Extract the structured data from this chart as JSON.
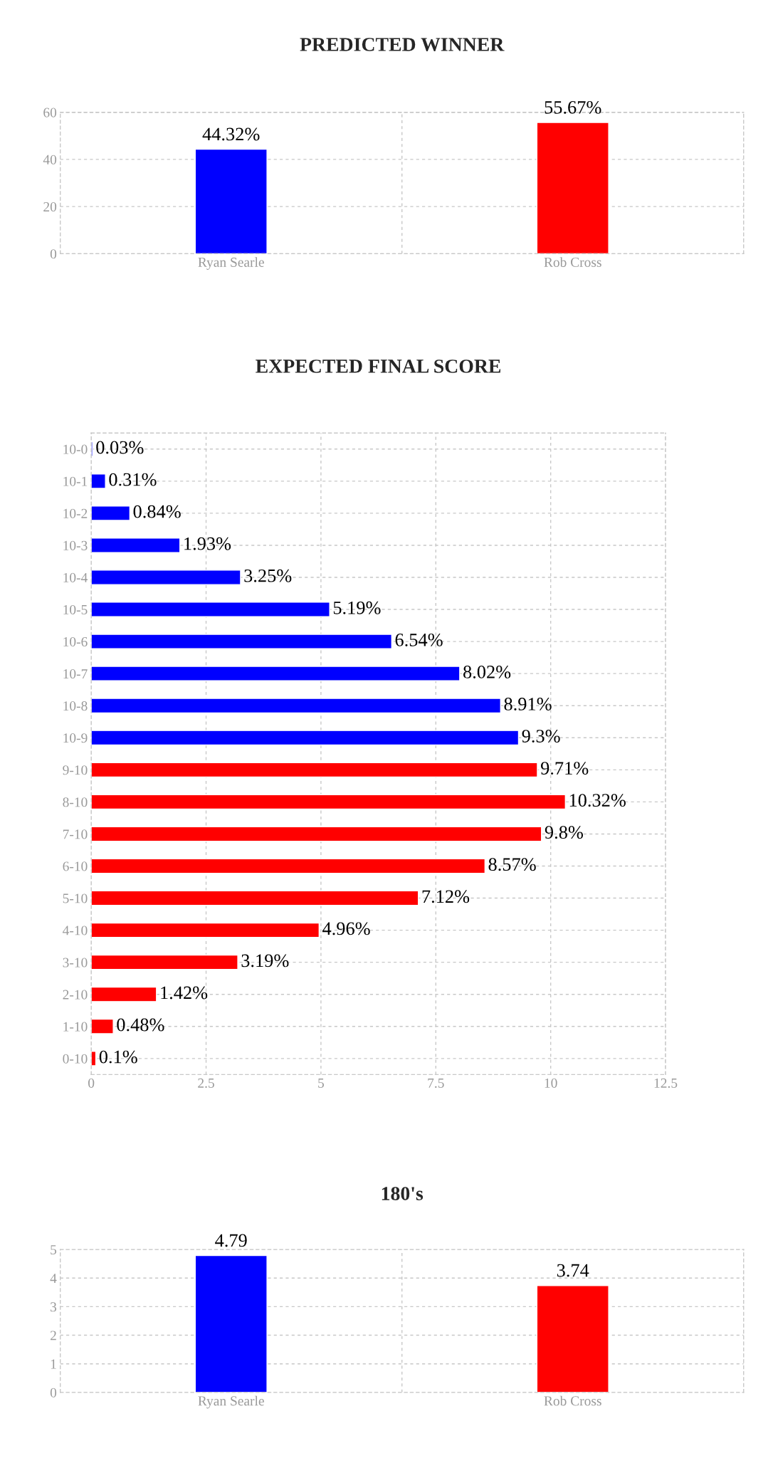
{
  "chart_data": [
    {
      "type": "bar",
      "title": "PREDICTED WINNER",
      "categories": [
        "Ryan Searle",
        "Rob Cross"
      ],
      "values": [
        44.32,
        55.67
      ],
      "colors": [
        "#0000ff",
        "#ff0000"
      ],
      "value_labels": [
        "44.32%",
        "55.67%"
      ],
      "ylim": [
        0,
        60
      ],
      "yticks": [
        0,
        20,
        40,
        60
      ],
      "grid": true,
      "legend": false
    },
    {
      "type": "bar",
      "orientation": "horizontal",
      "title": "EXPECTED FINAL SCORE",
      "categories": [
        "10-0",
        "10-1",
        "10-2",
        "10-3",
        "10-4",
        "10-5",
        "10-6",
        "10-7",
        "10-8",
        "10-9",
        "9-10",
        "8-10",
        "7-10",
        "6-10",
        "5-10",
        "4-10",
        "3-10",
        "2-10",
        "1-10",
        "0-10"
      ],
      "values": [
        0.03,
        0.31,
        0.84,
        1.93,
        3.25,
        5.19,
        6.54,
        8.02,
        8.91,
        9.3,
        9.71,
        10.32,
        9.8,
        8.57,
        7.12,
        4.96,
        3.19,
        1.42,
        0.48,
        0.1
      ],
      "colors": [
        "#0000ff",
        "#0000ff",
        "#0000ff",
        "#0000ff",
        "#0000ff",
        "#0000ff",
        "#0000ff",
        "#0000ff",
        "#0000ff",
        "#0000ff",
        "#ff0000",
        "#ff0000",
        "#ff0000",
        "#ff0000",
        "#ff0000",
        "#ff0000",
        "#ff0000",
        "#ff0000",
        "#ff0000",
        "#ff0000"
      ],
      "value_labels": [
        "0.03%",
        "0.31%",
        "0.84%",
        "1.93%",
        "3.25%",
        "5.19%",
        "6.54%",
        "8.02%",
        "8.91%",
        "9.3%",
        "9.71%",
        "10.32%",
        "9.8%",
        "8.57%",
        "7.12%",
        "4.96%",
        "3.19%",
        "1.42%",
        "0.48%",
        "0.1%"
      ],
      "xlim": [
        0,
        12.5
      ],
      "xticks": [
        0,
        2.5,
        5,
        7.5,
        10,
        12.5
      ],
      "grid": true,
      "legend": false
    },
    {
      "type": "bar",
      "title": "180's",
      "categories": [
        "Ryan Searle",
        "Rob Cross"
      ],
      "values": [
        4.79,
        3.74
      ],
      "colors": [
        "#0000ff",
        "#ff0000"
      ],
      "data_labels": true,
      "ylim": [
        0,
        5
      ],
      "yticks": [
        0,
        1,
        2,
        3,
        4,
        5
      ],
      "grid": true,
      "legend": false
    }
  ]
}
